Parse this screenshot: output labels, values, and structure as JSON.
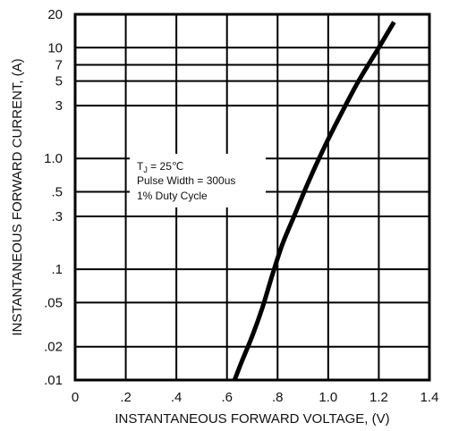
{
  "chart_data": {
    "type": "line",
    "xlabel": "INSTANTANEOUS FORWARD VOLTAGE, (V)",
    "ylabel": "INSTANTANEOUS FORWARD CURRENT, (A)",
    "x_ticks": [
      0,
      0.2,
      0.4,
      0.6,
      0.8,
      1.0,
      1.2,
      1.4
    ],
    "x_tick_labels": [
      "0",
      ".2",
      ".4",
      ".6",
      ".8",
      "1.0",
      "1.2",
      "1.4"
    ],
    "xlim": [
      0,
      1.4
    ],
    "y_scale": "log",
    "ylim": [
      0.01,
      20
    ],
    "y_ticks": [
      0.01,
      0.02,
      0.05,
      0.1,
      0.3,
      0.5,
      1.0,
      3,
      5,
      7,
      10,
      20
    ],
    "y_tick_labels": [
      ".01",
      ".02",
      ".05",
      ".1",
      ".3",
      ".5",
      "1.0",
      "3",
      "5",
      "7",
      "10",
      "20"
    ],
    "grid": true,
    "series": [
      {
        "x": [
          0.63,
          0.66,
          0.7,
          0.74,
          0.78,
          0.82,
          0.87,
          0.92,
          0.98,
          1.05,
          1.12,
          1.2,
          1.26
        ],
        "y": [
          0.01,
          0.015,
          0.025,
          0.045,
          0.09,
          0.17,
          0.32,
          0.6,
          1.2,
          2.5,
          5,
          10,
          17
        ]
      }
    ],
    "annotations": [
      {
        "text": "T",
        "sub": "J",
        "rest": " = 25℃"
      },
      {
        "text": "Pulse Width = 300us"
      },
      {
        "text": "1% Duty Cycle"
      }
    ]
  }
}
